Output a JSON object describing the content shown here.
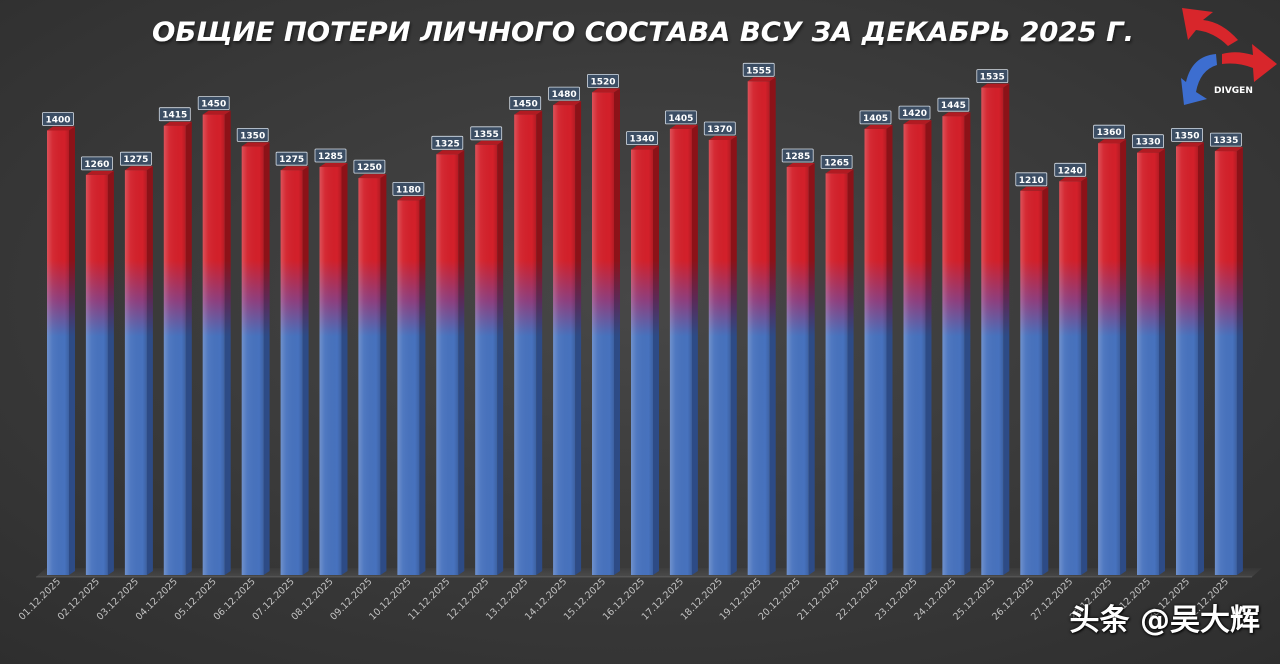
{
  "chart_data": {
    "type": "bar",
    "title": "ОБЩИЕ ПОТЕРИ ЛИЧНОГО СОСТАВА ВСУ ЗА ДЕКАБРЬ 2025 Г.",
    "categories": [
      "01.12.2025",
      "02.12.2025",
      "03.12.2025",
      "04.12.2025",
      "05.12.2025",
      "06.12.2025",
      "07.12.2025",
      "08.12.2025",
      "09.12.2025",
      "10.12.2025",
      "11.12.2025",
      "12.12.2025",
      "13.12.2025",
      "14.12.2025",
      "15.12.2025",
      "16.12.2025",
      "17.12.2025",
      "18.12.2025",
      "19.12.2025",
      "20.12.2025",
      "21.12.2025",
      "22.12.2025",
      "23.12.2025",
      "24.12.2025",
      "25.12.2025",
      "26.12.2025",
      "27.12.2025",
      "28.12.2025",
      "29.12.2025",
      "30.12.2025",
      "31.12.2025"
    ],
    "values": [
      1400,
      1260,
      1275,
      1415,
      1450,
      1350,
      1275,
      1285,
      1250,
      1180,
      1325,
      1355,
      1450,
      1480,
      1520,
      1340,
      1405,
      1370,
      1555,
      1285,
      1265,
      1405,
      1420,
      1445,
      1535,
      1210,
      1240,
      1360,
      1330,
      1350,
      1335
    ],
    "ylim": [
      0,
      1600
    ],
    "grid": false,
    "data_labels": true
  },
  "logo": {
    "text": "DIVGEN",
    "icon": "divgen-logo-icon"
  },
  "watermark": "头条 @吴大辉",
  "colors": {
    "bg_center": "#474747",
    "bg_edge": "#2e2e2e",
    "bar_red": "#d3202a",
    "bar_mid": "#8e3f7f",
    "bar_blue": "#4772be",
    "bar_red_dark": "#8c1218",
    "bar_mid_dark": "#5a2a58",
    "bar_blue_dark": "#2d4b86",
    "bar_top": "#b11b22",
    "label_box": "#3c4e64",
    "label_text": "#ffffff",
    "tick_text": "#c4c4c4",
    "title_text": "#ffffff",
    "logo_red": "#d8262b",
    "logo_blue": "#3d6ed0",
    "logo_text": "#ffffff"
  }
}
